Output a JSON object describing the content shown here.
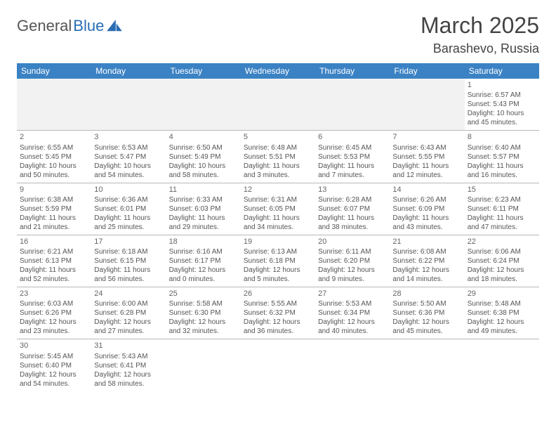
{
  "logo": {
    "text1": "General",
    "text2": "Blue"
  },
  "title": "March 2025",
  "location": "Barashevo, Russia",
  "colors": {
    "header_bg": "#3b82c4",
    "header_text": "#ffffff",
    "border": "#b8b8b8",
    "text": "#555555",
    "empty_bg": "#f2f2f2"
  },
  "weekdays": [
    "Sunday",
    "Monday",
    "Tuesday",
    "Wednesday",
    "Thursday",
    "Friday",
    "Saturday"
  ],
  "weeks": [
    [
      null,
      null,
      null,
      null,
      null,
      null,
      {
        "n": "1",
        "sr": "Sunrise: 6:57 AM",
        "ss": "Sunset: 5:43 PM",
        "d1": "Daylight: 10 hours",
        "d2": "and 45 minutes."
      }
    ],
    [
      {
        "n": "2",
        "sr": "Sunrise: 6:55 AM",
        "ss": "Sunset: 5:45 PM",
        "d1": "Daylight: 10 hours",
        "d2": "and 50 minutes."
      },
      {
        "n": "3",
        "sr": "Sunrise: 6:53 AM",
        "ss": "Sunset: 5:47 PM",
        "d1": "Daylight: 10 hours",
        "d2": "and 54 minutes."
      },
      {
        "n": "4",
        "sr": "Sunrise: 6:50 AM",
        "ss": "Sunset: 5:49 PM",
        "d1": "Daylight: 10 hours",
        "d2": "and 58 minutes."
      },
      {
        "n": "5",
        "sr": "Sunrise: 6:48 AM",
        "ss": "Sunset: 5:51 PM",
        "d1": "Daylight: 11 hours",
        "d2": "and 3 minutes."
      },
      {
        "n": "6",
        "sr": "Sunrise: 6:45 AM",
        "ss": "Sunset: 5:53 PM",
        "d1": "Daylight: 11 hours",
        "d2": "and 7 minutes."
      },
      {
        "n": "7",
        "sr": "Sunrise: 6:43 AM",
        "ss": "Sunset: 5:55 PM",
        "d1": "Daylight: 11 hours",
        "d2": "and 12 minutes."
      },
      {
        "n": "8",
        "sr": "Sunrise: 6:40 AM",
        "ss": "Sunset: 5:57 PM",
        "d1": "Daylight: 11 hours",
        "d2": "and 16 minutes."
      }
    ],
    [
      {
        "n": "9",
        "sr": "Sunrise: 6:38 AM",
        "ss": "Sunset: 5:59 PM",
        "d1": "Daylight: 11 hours",
        "d2": "and 21 minutes."
      },
      {
        "n": "10",
        "sr": "Sunrise: 6:36 AM",
        "ss": "Sunset: 6:01 PM",
        "d1": "Daylight: 11 hours",
        "d2": "and 25 minutes."
      },
      {
        "n": "11",
        "sr": "Sunrise: 6:33 AM",
        "ss": "Sunset: 6:03 PM",
        "d1": "Daylight: 11 hours",
        "d2": "and 29 minutes."
      },
      {
        "n": "12",
        "sr": "Sunrise: 6:31 AM",
        "ss": "Sunset: 6:05 PM",
        "d1": "Daylight: 11 hours",
        "d2": "and 34 minutes."
      },
      {
        "n": "13",
        "sr": "Sunrise: 6:28 AM",
        "ss": "Sunset: 6:07 PM",
        "d1": "Daylight: 11 hours",
        "d2": "and 38 minutes."
      },
      {
        "n": "14",
        "sr": "Sunrise: 6:26 AM",
        "ss": "Sunset: 6:09 PM",
        "d1": "Daylight: 11 hours",
        "d2": "and 43 minutes."
      },
      {
        "n": "15",
        "sr": "Sunrise: 6:23 AM",
        "ss": "Sunset: 6:11 PM",
        "d1": "Daylight: 11 hours",
        "d2": "and 47 minutes."
      }
    ],
    [
      {
        "n": "16",
        "sr": "Sunrise: 6:21 AM",
        "ss": "Sunset: 6:13 PM",
        "d1": "Daylight: 11 hours",
        "d2": "and 52 minutes."
      },
      {
        "n": "17",
        "sr": "Sunrise: 6:18 AM",
        "ss": "Sunset: 6:15 PM",
        "d1": "Daylight: 11 hours",
        "d2": "and 56 minutes."
      },
      {
        "n": "18",
        "sr": "Sunrise: 6:16 AM",
        "ss": "Sunset: 6:17 PM",
        "d1": "Daylight: 12 hours",
        "d2": "and 0 minutes."
      },
      {
        "n": "19",
        "sr": "Sunrise: 6:13 AM",
        "ss": "Sunset: 6:18 PM",
        "d1": "Daylight: 12 hours",
        "d2": "and 5 minutes."
      },
      {
        "n": "20",
        "sr": "Sunrise: 6:11 AM",
        "ss": "Sunset: 6:20 PM",
        "d1": "Daylight: 12 hours",
        "d2": "and 9 minutes."
      },
      {
        "n": "21",
        "sr": "Sunrise: 6:08 AM",
        "ss": "Sunset: 6:22 PM",
        "d1": "Daylight: 12 hours",
        "d2": "and 14 minutes."
      },
      {
        "n": "22",
        "sr": "Sunrise: 6:06 AM",
        "ss": "Sunset: 6:24 PM",
        "d1": "Daylight: 12 hours",
        "d2": "and 18 minutes."
      }
    ],
    [
      {
        "n": "23",
        "sr": "Sunrise: 6:03 AM",
        "ss": "Sunset: 6:26 PM",
        "d1": "Daylight: 12 hours",
        "d2": "and 23 minutes."
      },
      {
        "n": "24",
        "sr": "Sunrise: 6:00 AM",
        "ss": "Sunset: 6:28 PM",
        "d1": "Daylight: 12 hours",
        "d2": "and 27 minutes."
      },
      {
        "n": "25",
        "sr": "Sunrise: 5:58 AM",
        "ss": "Sunset: 6:30 PM",
        "d1": "Daylight: 12 hours",
        "d2": "and 32 minutes."
      },
      {
        "n": "26",
        "sr": "Sunrise: 5:55 AM",
        "ss": "Sunset: 6:32 PM",
        "d1": "Daylight: 12 hours",
        "d2": "and 36 minutes."
      },
      {
        "n": "27",
        "sr": "Sunrise: 5:53 AM",
        "ss": "Sunset: 6:34 PM",
        "d1": "Daylight: 12 hours",
        "d2": "and 40 minutes."
      },
      {
        "n": "28",
        "sr": "Sunrise: 5:50 AM",
        "ss": "Sunset: 6:36 PM",
        "d1": "Daylight: 12 hours",
        "d2": "and 45 minutes."
      },
      {
        "n": "29",
        "sr": "Sunrise: 5:48 AM",
        "ss": "Sunset: 6:38 PM",
        "d1": "Daylight: 12 hours",
        "d2": "and 49 minutes."
      }
    ],
    [
      {
        "n": "30",
        "sr": "Sunrise: 5:45 AM",
        "ss": "Sunset: 6:40 PM",
        "d1": "Daylight: 12 hours",
        "d2": "and 54 minutes."
      },
      {
        "n": "31",
        "sr": "Sunrise: 5:43 AM",
        "ss": "Sunset: 6:41 PM",
        "d1": "Daylight: 12 hours",
        "d2": "and 58 minutes."
      },
      null,
      null,
      null,
      null,
      null
    ]
  ]
}
